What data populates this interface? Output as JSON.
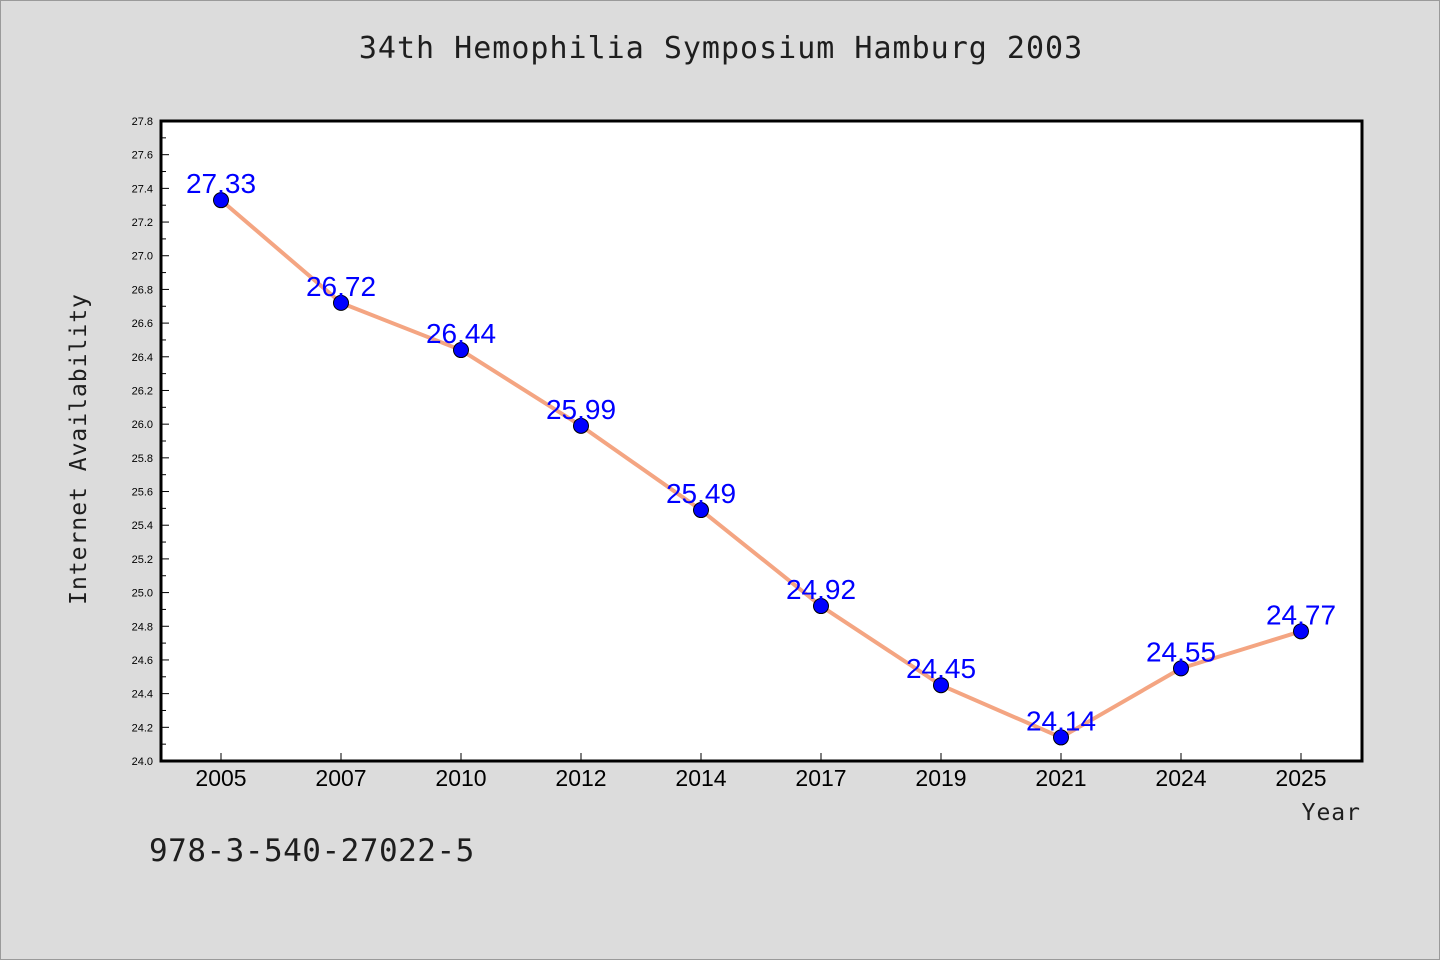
{
  "header": {
    "title": "34th Hemophilia Symposium Hamburg 2003"
  },
  "footer": {
    "caption": "978-3-540-27022-5"
  },
  "chart_data": {
    "type": "line",
    "title": "34th Hemophilia Symposium Hamburg 2003",
    "xlabel": "Year",
    "ylabel": "Internet Availability",
    "categories": [
      "2005",
      "2007",
      "2010",
      "2012",
      "2014",
      "2017",
      "2019",
      "2021",
      "2024",
      "2025"
    ],
    "series": [
      {
        "values": [
          27.33,
          26.72,
          26.44,
          25.99,
          25.49,
          24.92,
          24.45,
          24.14,
          24.55,
          24.77
        ],
        "line_color": "#f4a582",
        "marker_color": "#0000ff"
      }
    ],
    "data_labels": [
      "27.33",
      "26.72",
      "26.44",
      "25.99",
      "25.49",
      "24.92",
      "24.45",
      "24.14",
      "24.55",
      "24.77"
    ],
    "y_ticks": [
      "24.0",
      "24.2",
      "24.4",
      "24.6",
      "24.8",
      "25.0",
      "25.2",
      "25.4",
      "25.6",
      "25.8",
      "26.0",
      "26.2",
      "26.4",
      "26.6",
      "26.8",
      "27.0",
      "27.2",
      "27.4",
      "27.6",
      "27.8"
    ],
    "ylim": [
      24.0,
      27.8
    ],
    "grid": false,
    "legend": "none",
    "background_color": "#dcdcdc",
    "plot_background_color": "#ffffff",
    "label_color": "#0000ff"
  }
}
